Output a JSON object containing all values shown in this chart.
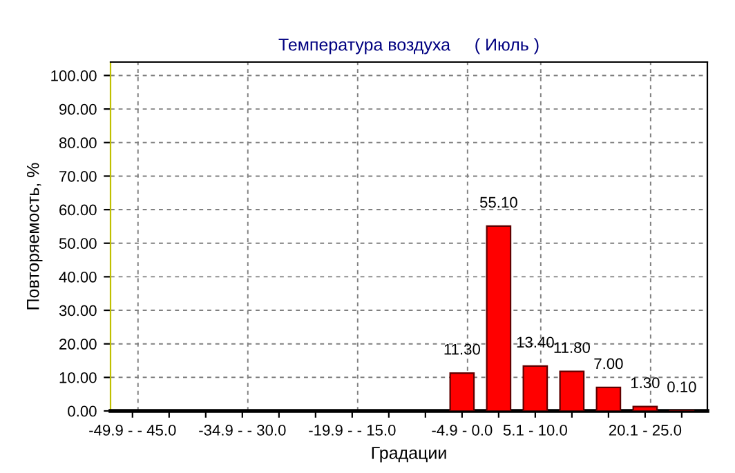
{
  "chart_data": {
    "type": "bar",
    "title": "Температура воздуха     ( Июль )",
    "xlabel": "Градации",
    "ylabel": "Повторяемость, %",
    "categories": [
      "-49.9 - - 45.0",
      null,
      null,
      "-34.9 - - 30.0",
      null,
      null,
      "-19.9 - - 15.0",
      null,
      null,
      "-4.9 - 0.0",
      null,
      "5.1 - 10.0",
      null,
      null,
      "20.1 - 25.0",
      null
    ],
    "values": [
      0,
      0,
      0,
      0,
      0,
      0,
      0,
      0,
      0,
      11.3,
      55.1,
      13.4,
      11.8,
      7.0,
      1.3,
      0.1
    ],
    "value_labels": [
      null,
      null,
      null,
      null,
      null,
      null,
      null,
      null,
      null,
      "11.30",
      "55.10",
      "13.40",
      "11.80",
      "7.00",
      "1.30",
      "0.10"
    ],
    "color": "#ff0000",
    "ylim": [
      0,
      104
    ],
    "yticks": [
      {
        "value": 0,
        "label": "0.00"
      },
      {
        "value": 10,
        "label": "10.00"
      },
      {
        "value": 20,
        "label": "20.00"
      },
      {
        "value": 30,
        "label": "30.00"
      },
      {
        "value": 40,
        "label": "40.00"
      },
      {
        "value": 50,
        "label": "50.00"
      },
      {
        "value": 60,
        "label": "60.00"
      },
      {
        "value": 70,
        "label": "70.00"
      },
      {
        "value": 80,
        "label": "80.00"
      },
      {
        "value": 90,
        "label": "90.00"
      },
      {
        "value": 100,
        "label": "100.00"
      }
    ],
    "grid": true,
    "legend": false
  }
}
